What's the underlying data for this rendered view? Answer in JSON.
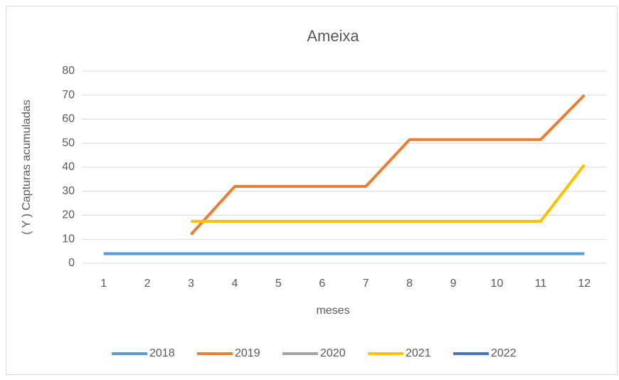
{
  "chart_data": {
    "type": "line",
    "title": "Ameixa",
    "x_label": "meses",
    "y_label": "( Y ) Capturas acumuladas",
    "categories": [
      "1",
      "2",
      "3",
      "4",
      "5",
      "6",
      "7",
      "8",
      "9",
      "10",
      "11",
      "12"
    ],
    "series": [
      {
        "name": "2018",
        "color": "#5b9bd5",
        "values": [
          4,
          4,
          4,
          4,
          4,
          4,
          4,
          4,
          4,
          4,
          4,
          4
        ]
      },
      {
        "name": "2019",
        "color": "#ed7d31",
        "values": [
          null,
          null,
          12,
          32,
          32,
          32,
          32,
          51.5,
          51.5,
          51.5,
          51.5,
          70
        ]
      },
      {
        "name": "2020",
        "color": "#a5a5a5",
        "values": [
          null,
          null,
          null,
          null,
          null,
          null,
          null,
          null,
          null,
          null,
          null,
          null
        ]
      },
      {
        "name": "2021",
        "color": "#ffc000",
        "values": [
          null,
          null,
          17.5,
          17.5,
          17.5,
          17.5,
          17.5,
          17.5,
          17.5,
          17.5,
          17.5,
          41
        ]
      },
      {
        "name": "2022",
        "color": "#4472c4",
        "values": [
          null,
          null,
          null,
          null,
          null,
          null,
          null,
          null,
          null,
          null,
          null,
          null
        ]
      }
    ],
    "ylim": [
      0,
      80
    ],
    "yticks": [
      0,
      10,
      20,
      30,
      40,
      50,
      60,
      70,
      80
    ],
    "grid": true,
    "legend": "bottom"
  }
}
